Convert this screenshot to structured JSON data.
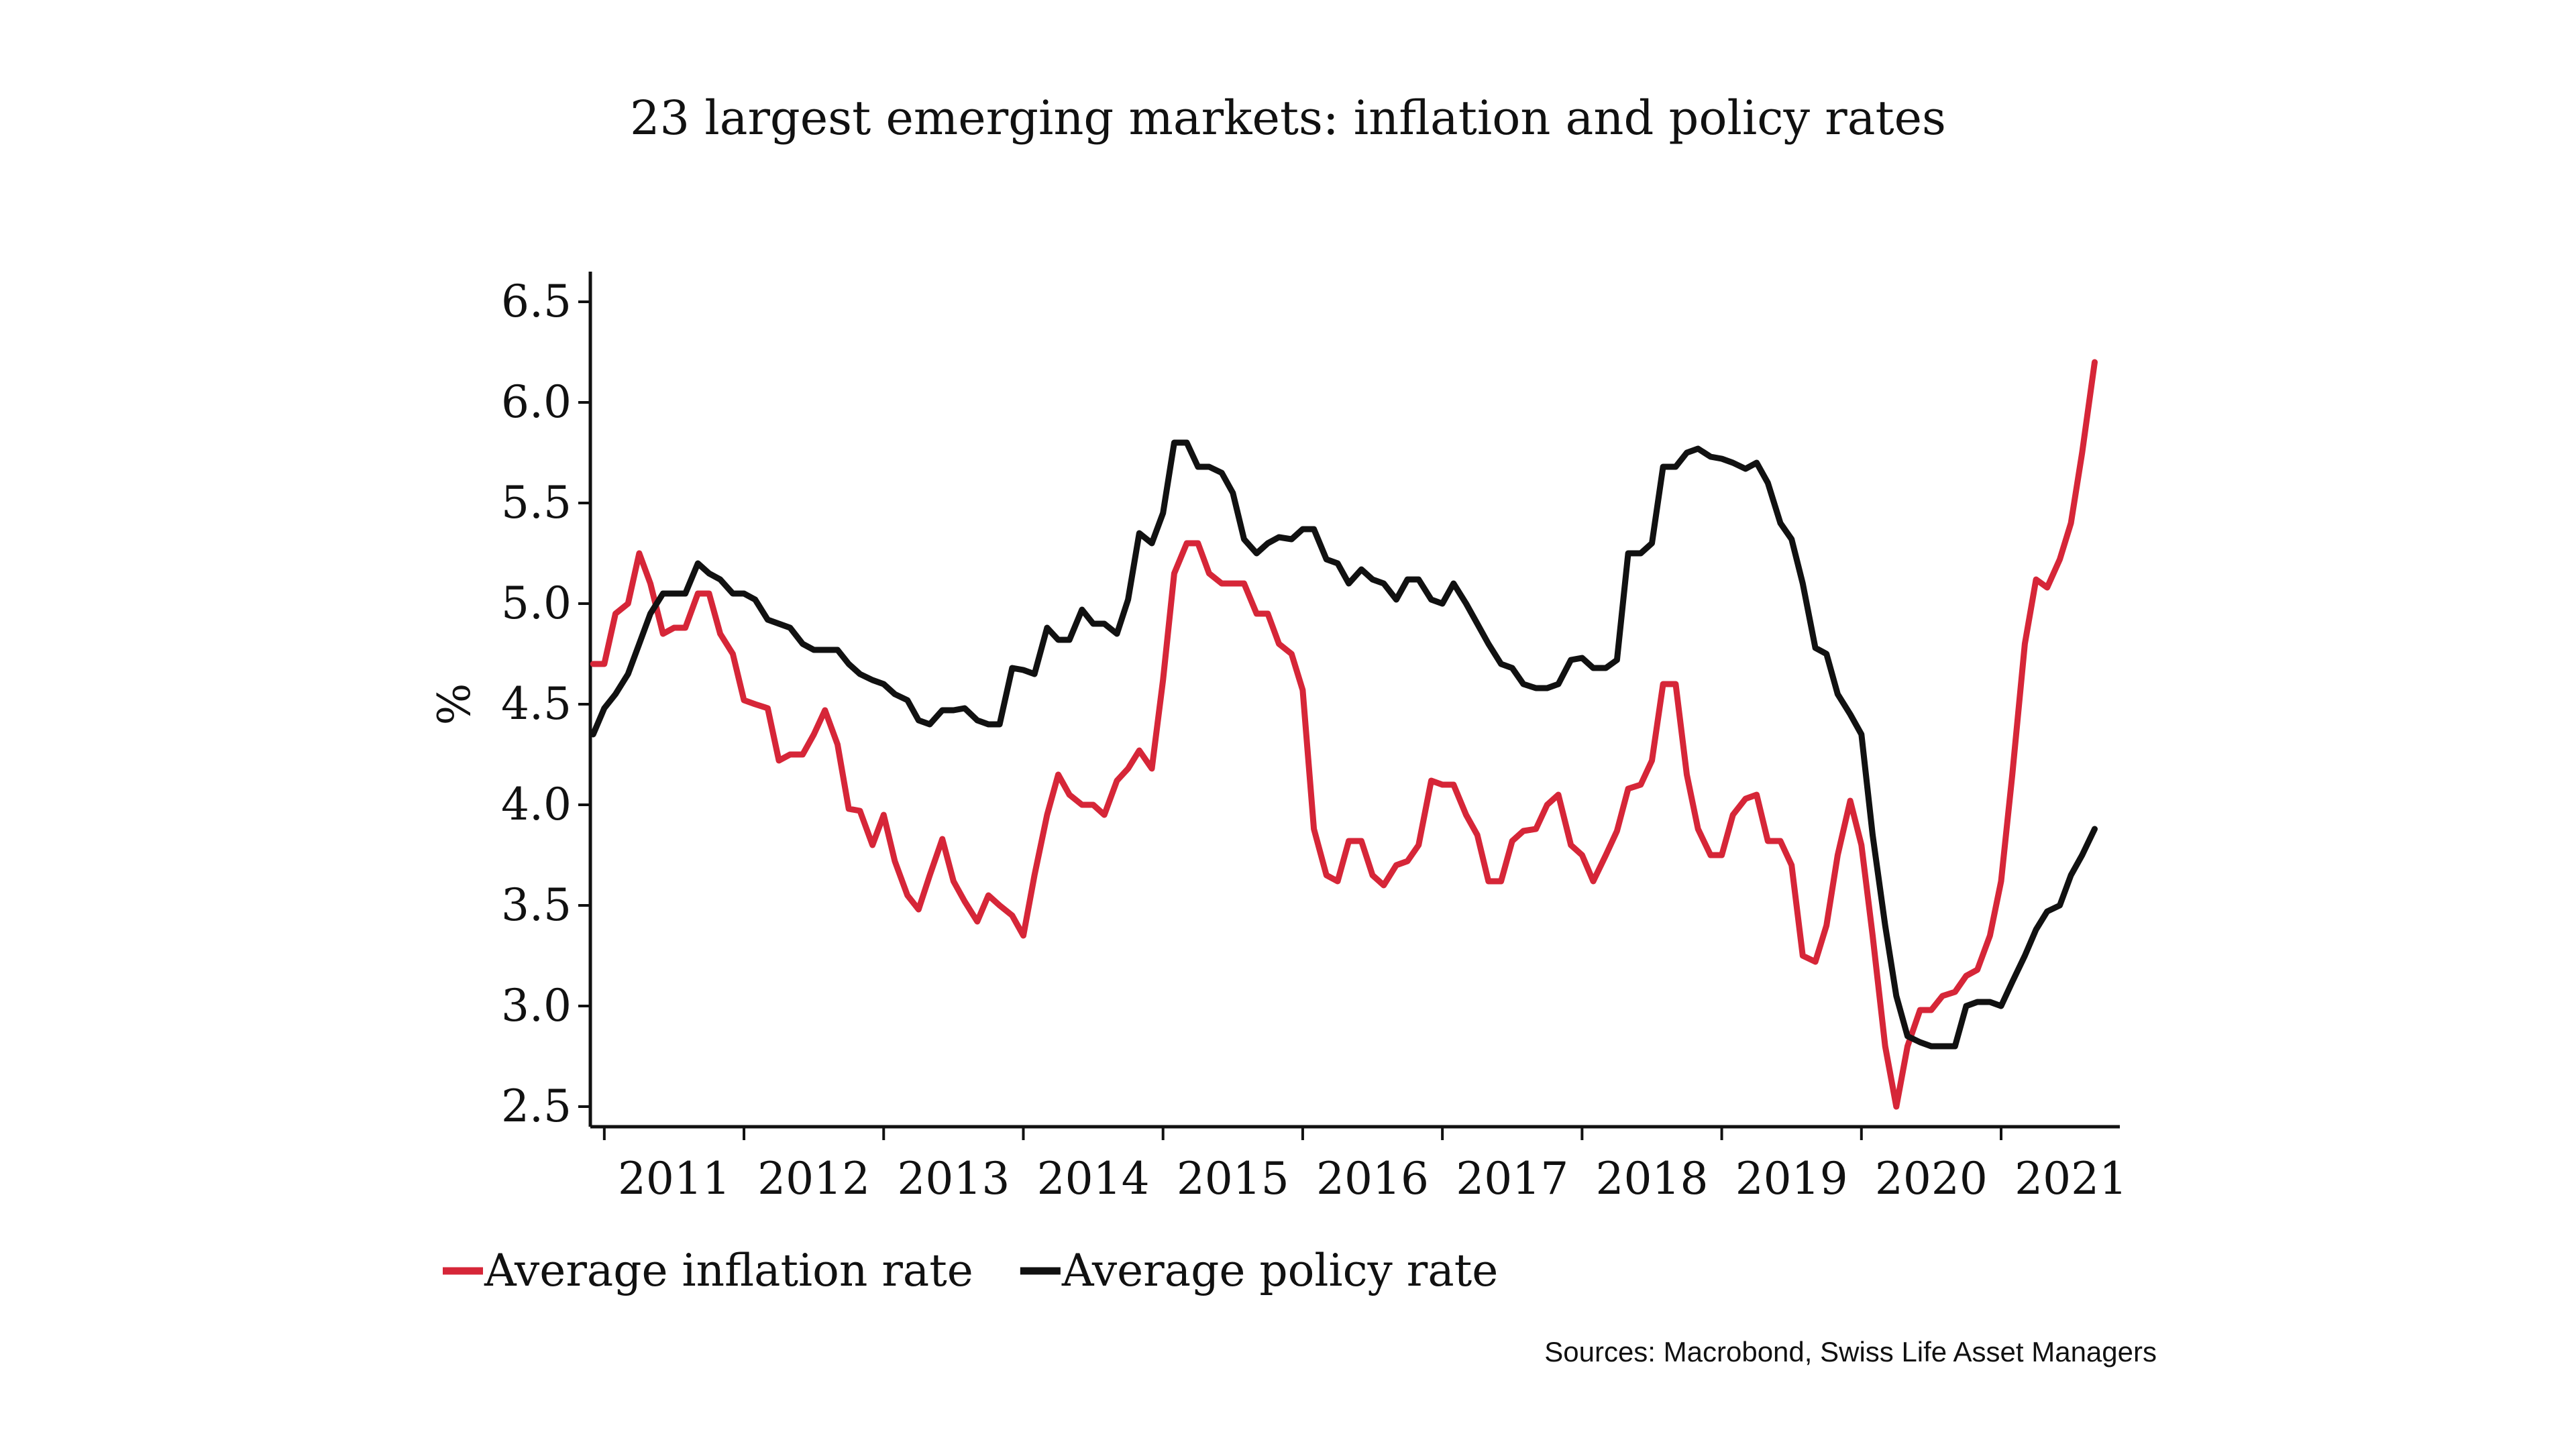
{
  "chart_data": {
    "type": "line",
    "title": "23 largest emerging markets: inflation and policy rates",
    "ylabel": "%",
    "xlabel": "",
    "ylim": [
      2.4,
      6.65
    ],
    "yticks": [
      "2.5",
      "3.0",
      "3.5",
      "4.0",
      "4.5",
      "5.0",
      "5.5",
      "6.0",
      "6.5"
    ],
    "xlim": [
      2010.9,
      2021.85
    ],
    "year_ticks": [
      "2011",
      "2012",
      "2013",
      "2014",
      "2015",
      "2016",
      "2017",
      "2018",
      "2019",
      "2020",
      "2021"
    ],
    "grid": false,
    "legend_position": "bottom-left",
    "source": "Sources: Macrobond, Swiss Life Asset Managers",
    "series": [
      {
        "name": "Average inflation rate",
        "color": "#d62638",
        "points": [
          [
            2010.92,
            4.7
          ],
          [
            2011.0,
            4.7
          ],
          [
            2011.08,
            4.95
          ],
          [
            2011.17,
            5.0
          ],
          [
            2011.25,
            5.25
          ],
          [
            2011.33,
            5.1
          ],
          [
            2011.42,
            4.85
          ],
          [
            2011.5,
            4.88
          ],
          [
            2011.58,
            4.88
          ],
          [
            2011.67,
            5.05
          ],
          [
            2011.75,
            5.05
          ],
          [
            2011.83,
            4.85
          ],
          [
            2011.92,
            4.75
          ],
          [
            2012.0,
            4.52
          ],
          [
            2012.08,
            4.5
          ],
          [
            2012.17,
            4.48
          ],
          [
            2012.25,
            4.22
          ],
          [
            2012.33,
            4.25
          ],
          [
            2012.42,
            4.25
          ],
          [
            2012.5,
            4.35
          ],
          [
            2012.58,
            4.47
          ],
          [
            2012.67,
            4.3
          ],
          [
            2012.75,
            3.98
          ],
          [
            2012.83,
            3.97
          ],
          [
            2012.92,
            3.8
          ],
          [
            2013.0,
            3.95
          ],
          [
            2013.08,
            3.72
          ],
          [
            2013.17,
            3.55
          ],
          [
            2013.25,
            3.48
          ],
          [
            2013.33,
            3.65
          ],
          [
            2013.42,
            3.83
          ],
          [
            2013.5,
            3.62
          ],
          [
            2013.58,
            3.52
          ],
          [
            2013.67,
            3.42
          ],
          [
            2013.75,
            3.55
          ],
          [
            2013.83,
            3.5
          ],
          [
            2013.92,
            3.45
          ],
          [
            2014.0,
            3.35
          ],
          [
            2014.08,
            3.65
          ],
          [
            2014.17,
            3.95
          ],
          [
            2014.25,
            4.15
          ],
          [
            2014.33,
            4.05
          ],
          [
            2014.42,
            4.0
          ],
          [
            2014.5,
            4.0
          ],
          [
            2014.58,
            3.95
          ],
          [
            2014.67,
            4.12
          ],
          [
            2014.75,
            4.18
          ],
          [
            2014.83,
            4.27
          ],
          [
            2014.92,
            4.18
          ],
          [
            2015.0,
            4.62
          ],
          [
            2015.08,
            5.15
          ],
          [
            2015.17,
            5.3
          ],
          [
            2015.25,
            5.3
          ],
          [
            2015.33,
            5.15
          ],
          [
            2015.42,
            5.1
          ],
          [
            2015.5,
            5.1
          ],
          [
            2015.58,
            5.1
          ],
          [
            2015.67,
            4.95
          ],
          [
            2015.75,
            4.95
          ],
          [
            2015.83,
            4.8
          ],
          [
            2015.92,
            4.75
          ],
          [
            2016.0,
            4.57
          ],
          [
            2016.08,
            3.88
          ],
          [
            2016.17,
            3.65
          ],
          [
            2016.25,
            3.62
          ],
          [
            2016.33,
            3.82
          ],
          [
            2016.42,
            3.82
          ],
          [
            2016.5,
            3.65
          ],
          [
            2016.58,
            3.6
          ],
          [
            2016.67,
            3.7
          ],
          [
            2016.75,
            3.72
          ],
          [
            2016.83,
            3.8
          ],
          [
            2016.92,
            4.12
          ],
          [
            2017.0,
            4.1
          ],
          [
            2017.08,
            4.1
          ],
          [
            2017.17,
            3.95
          ],
          [
            2017.25,
            3.85
          ],
          [
            2017.33,
            3.62
          ],
          [
            2017.42,
            3.62
          ],
          [
            2017.5,
            3.82
          ],
          [
            2017.58,
            3.87
          ],
          [
            2017.67,
            3.88
          ],
          [
            2017.75,
            4.0
          ],
          [
            2017.83,
            4.05
          ],
          [
            2017.92,
            3.8
          ],
          [
            2018.0,
            3.75
          ],
          [
            2018.08,
            3.62
          ],
          [
            2018.17,
            3.75
          ],
          [
            2018.25,
            3.87
          ],
          [
            2018.33,
            4.08
          ],
          [
            2018.42,
            4.1
          ],
          [
            2018.5,
            4.22
          ],
          [
            2018.58,
            4.6
          ],
          [
            2018.67,
            4.6
          ],
          [
            2018.75,
            4.15
          ],
          [
            2018.83,
            3.88
          ],
          [
            2018.92,
            3.75
          ],
          [
            2019.0,
            3.75
          ],
          [
            2019.08,
            3.95
          ],
          [
            2019.17,
            4.03
          ],
          [
            2019.25,
            4.05
          ],
          [
            2019.33,
            3.82
          ],
          [
            2019.42,
            3.82
          ],
          [
            2019.5,
            3.7
          ],
          [
            2019.58,
            3.25
          ],
          [
            2019.67,
            3.22
          ],
          [
            2019.75,
            3.4
          ],
          [
            2019.83,
            3.75
          ],
          [
            2019.92,
            4.02
          ],
          [
            2020.0,
            3.8
          ],
          [
            2020.08,
            3.35
          ],
          [
            2020.17,
            2.8
          ],
          [
            2020.25,
            2.5
          ],
          [
            2020.33,
            2.8
          ],
          [
            2020.42,
            2.98
          ],
          [
            2020.5,
            2.98
          ],
          [
            2020.58,
            3.05
          ],
          [
            2020.67,
            3.07
          ],
          [
            2020.75,
            3.15
          ],
          [
            2020.83,
            3.18
          ],
          [
            2020.92,
            3.35
          ],
          [
            2021.0,
            3.62
          ],
          [
            2021.08,
            4.15
          ],
          [
            2021.17,
            4.8
          ],
          [
            2021.25,
            5.12
          ],
          [
            2021.33,
            5.08
          ],
          [
            2021.42,
            5.22
          ],
          [
            2021.5,
            5.4
          ],
          [
            2021.58,
            5.75
          ],
          [
            2021.67,
            6.2
          ]
        ]
      },
      {
        "name": "Average policy rate",
        "color": "#111111",
        "points": [
          [
            2010.92,
            4.35
          ],
          [
            2011.0,
            4.48
          ],
          [
            2011.08,
            4.55
          ],
          [
            2011.17,
            4.65
          ],
          [
            2011.25,
            4.8
          ],
          [
            2011.33,
            4.95
          ],
          [
            2011.42,
            5.05
          ],
          [
            2011.5,
            5.05
          ],
          [
            2011.58,
            5.05
          ],
          [
            2011.67,
            5.2
          ],
          [
            2011.75,
            5.15
          ],
          [
            2011.83,
            5.12
          ],
          [
            2011.92,
            5.05
          ],
          [
            2012.0,
            5.05
          ],
          [
            2012.08,
            5.02
          ],
          [
            2012.17,
            4.92
          ],
          [
            2012.25,
            4.9
          ],
          [
            2012.33,
            4.88
          ],
          [
            2012.42,
            4.8
          ],
          [
            2012.5,
            4.77
          ],
          [
            2012.58,
            4.77
          ],
          [
            2012.67,
            4.77
          ],
          [
            2012.75,
            4.7
          ],
          [
            2012.83,
            4.65
          ],
          [
            2012.92,
            4.62
          ],
          [
            2013.0,
            4.6
          ],
          [
            2013.08,
            4.55
          ],
          [
            2013.17,
            4.52
          ],
          [
            2013.25,
            4.42
          ],
          [
            2013.33,
            4.4
          ],
          [
            2013.42,
            4.47
          ],
          [
            2013.5,
            4.47
          ],
          [
            2013.58,
            4.48
          ],
          [
            2013.67,
            4.42
          ],
          [
            2013.75,
            4.4
          ],
          [
            2013.83,
            4.4
          ],
          [
            2013.92,
            4.68
          ],
          [
            2014.0,
            4.67
          ],
          [
            2014.08,
            4.65
          ],
          [
            2014.17,
            4.88
          ],
          [
            2014.25,
            4.82
          ],
          [
            2014.33,
            4.82
          ],
          [
            2014.42,
            4.97
          ],
          [
            2014.5,
            4.9
          ],
          [
            2014.58,
            4.9
          ],
          [
            2014.67,
            4.85
          ],
          [
            2014.75,
            5.02
          ],
          [
            2014.83,
            5.35
          ],
          [
            2014.92,
            5.3
          ],
          [
            2015.0,
            5.45
          ],
          [
            2015.08,
            5.8
          ],
          [
            2015.17,
            5.8
          ],
          [
            2015.25,
            5.68
          ],
          [
            2015.33,
            5.68
          ],
          [
            2015.42,
            5.65
          ],
          [
            2015.5,
            5.55
          ],
          [
            2015.58,
            5.32
          ],
          [
            2015.67,
            5.25
          ],
          [
            2015.75,
            5.3
          ],
          [
            2015.83,
            5.33
          ],
          [
            2015.92,
            5.32
          ],
          [
            2016.0,
            5.37
          ],
          [
            2016.08,
            5.37
          ],
          [
            2016.17,
            5.22
          ],
          [
            2016.25,
            5.2
          ],
          [
            2016.33,
            5.1
          ],
          [
            2016.42,
            5.17
          ],
          [
            2016.5,
            5.12
          ],
          [
            2016.58,
            5.1
          ],
          [
            2016.67,
            5.02
          ],
          [
            2016.75,
            5.12
          ],
          [
            2016.83,
            5.12
          ],
          [
            2016.92,
            5.02
          ],
          [
            2017.0,
            5.0
          ],
          [
            2017.08,
            5.1
          ],
          [
            2017.17,
            5.0
          ],
          [
            2017.25,
            4.9
          ],
          [
            2017.33,
            4.8
          ],
          [
            2017.42,
            4.7
          ],
          [
            2017.5,
            4.68
          ],
          [
            2017.58,
            4.6
          ],
          [
            2017.67,
            4.58
          ],
          [
            2017.75,
            4.58
          ],
          [
            2017.83,
            4.6
          ],
          [
            2017.92,
            4.72
          ],
          [
            2018.0,
            4.73
          ],
          [
            2018.08,
            4.68
          ],
          [
            2018.17,
            4.68
          ],
          [
            2018.25,
            4.72
          ],
          [
            2018.33,
            5.25
          ],
          [
            2018.42,
            5.25
          ],
          [
            2018.5,
            5.3
          ],
          [
            2018.58,
            5.68
          ],
          [
            2018.67,
            5.68
          ],
          [
            2018.75,
            5.75
          ],
          [
            2018.83,
            5.77
          ],
          [
            2018.92,
            5.73
          ],
          [
            2019.0,
            5.72
          ],
          [
            2019.08,
            5.7
          ],
          [
            2019.17,
            5.67
          ],
          [
            2019.25,
            5.7
          ],
          [
            2019.33,
            5.6
          ],
          [
            2019.42,
            5.4
          ],
          [
            2019.5,
            5.32
          ],
          [
            2019.58,
            5.1
          ],
          [
            2019.67,
            4.78
          ],
          [
            2019.75,
            4.75
          ],
          [
            2019.83,
            4.55
          ],
          [
            2019.92,
            4.45
          ],
          [
            2020.0,
            4.35
          ],
          [
            2020.08,
            3.85
          ],
          [
            2020.17,
            3.4
          ],
          [
            2020.25,
            3.05
          ],
          [
            2020.33,
            2.85
          ],
          [
            2020.42,
            2.82
          ],
          [
            2020.5,
            2.8
          ],
          [
            2020.58,
            2.8
          ],
          [
            2020.67,
            2.8
          ],
          [
            2020.75,
            3.0
          ],
          [
            2020.83,
            3.02
          ],
          [
            2020.92,
            3.02
          ],
          [
            2021.0,
            3.0
          ],
          [
            2021.08,
            3.12
          ],
          [
            2021.17,
            3.25
          ],
          [
            2021.25,
            3.38
          ],
          [
            2021.33,
            3.47
          ],
          [
            2021.42,
            3.5
          ],
          [
            2021.5,
            3.65
          ],
          [
            2021.58,
            3.75
          ],
          [
            2021.67,
            3.88
          ]
        ]
      }
    ]
  }
}
